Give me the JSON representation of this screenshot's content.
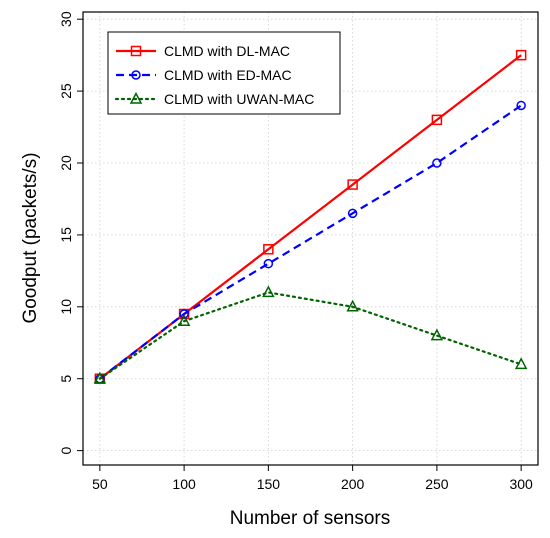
{
  "chart_data": {
    "type": "line",
    "title": "",
    "xlabel": "Number of sensors",
    "ylabel": "Goodput (packets/s)",
    "x": [
      50,
      100,
      150,
      200,
      250,
      300
    ],
    "xlim": [
      40,
      310
    ],
    "ylim": [
      -1,
      30.5
    ],
    "xticks": [
      "50",
      "100",
      "150",
      "200",
      "250",
      "300"
    ],
    "yticks": [
      "0",
      "5",
      "10",
      "15",
      "20",
      "25",
      "30"
    ],
    "grid": true,
    "legend_position": "top-left",
    "series": [
      {
        "name": "CLMD with DL-MAC",
        "values": [
          5,
          9.5,
          14,
          18.5,
          23,
          27.5
        ],
        "color": "#ff0000",
        "marker": "square",
        "line_style": "solid"
      },
      {
        "name": "CLMD with ED-MAC",
        "values": [
          5,
          9.5,
          13,
          16.5,
          20,
          24
        ],
        "color": "#0000ff",
        "marker": "circle",
        "line_style": "dashed"
      },
      {
        "name": "CLMD with UWAN-MAC",
        "values": [
          5,
          9,
          11,
          10,
          8,
          6
        ],
        "color": "#006400",
        "marker": "triangle",
        "line_style": "dotted"
      }
    ]
  }
}
